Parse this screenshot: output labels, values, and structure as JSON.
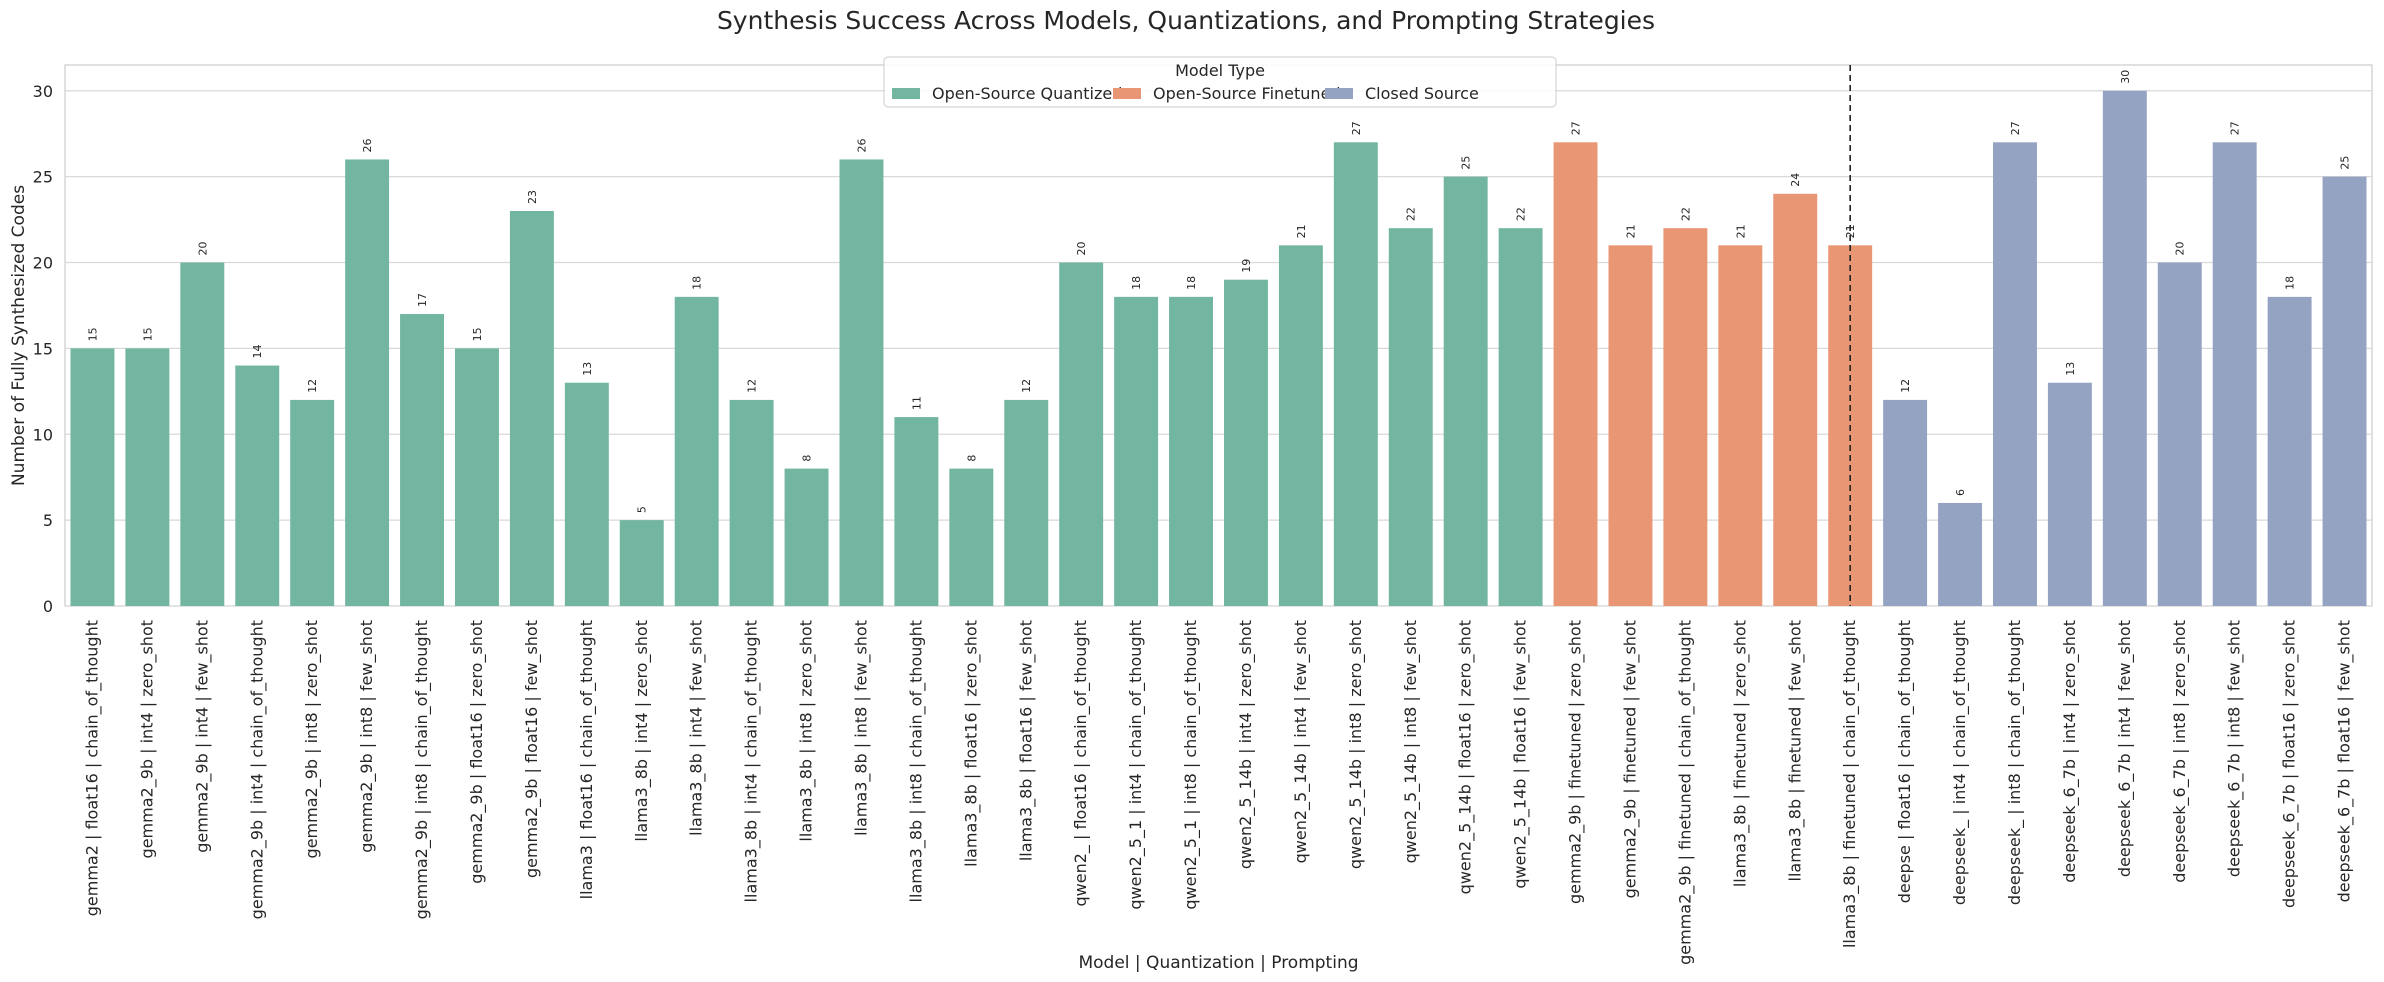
{
  "chart_data": {
    "type": "bar",
    "title": "Synthesis Success Across Models, Quantizations, and Prompting Strategies",
    "xlabel": "Model | Quantization | Prompting",
    "ylabel": "Number of Fully Synthesized Codes",
    "ylim": [
      0,
      31.5
    ],
    "yticks": [
      0,
      5,
      10,
      15,
      20,
      25,
      30
    ],
    "grid": true,
    "legend": {
      "title": "Model Type",
      "placement": "top-center",
      "entries": [
        {
          "name": "Open-Source Quantized",
          "color": "#72b6a1"
        },
        {
          "name": "Open-Source Finetuned",
          "color": "#e99675"
        },
        {
          "name": "Closed Source",
          "color": "#95a3c3"
        }
      ]
    },
    "divider_after_index": 32,
    "bars": [
      {
        "label": "gemma2 | float16 | chain_of_thought",
        "value": 15,
        "group": 0
      },
      {
        "label": "gemma2_9b | int4 | zero_shot",
        "value": 15,
        "group": 0
      },
      {
        "label": "gemma2_9b | int4 | few_shot",
        "value": 20,
        "group": 0
      },
      {
        "label": "gemma2_9b | int4 | chain_of_thought",
        "value": 14,
        "group": 0
      },
      {
        "label": "gemma2_9b | int8 | zero_shot",
        "value": 12,
        "group": 0
      },
      {
        "label": "gemma2_9b | int8 | few_shot",
        "value": 26,
        "group": 0
      },
      {
        "label": "gemma2_9b | int8 | chain_of_thought",
        "value": 17,
        "group": 0
      },
      {
        "label": "gemma2_9b | float16 | zero_shot",
        "value": 15,
        "group": 0
      },
      {
        "label": "gemma2_9b | float16 | few_shot",
        "value": 23,
        "group": 0
      },
      {
        "label": "llama3 | float16 | chain_of_thought",
        "value": 13,
        "group": 0
      },
      {
        "label": "llama3_8b | int4 | zero_shot",
        "value": 5,
        "group": 0
      },
      {
        "label": "llama3_8b | int4 | few_shot",
        "value": 18,
        "group": 0
      },
      {
        "label": "llama3_8b | int4 | chain_of_thought",
        "value": 12,
        "group": 0
      },
      {
        "label": "llama3_8b | int8 | zero_shot",
        "value": 8,
        "group": 0
      },
      {
        "label": "llama3_8b | int8 | few_shot",
        "value": 26,
        "group": 0
      },
      {
        "label": "llama3_8b | int8 | chain_of_thought",
        "value": 11,
        "group": 0
      },
      {
        "label": "llama3_8b | float16 | zero_shot",
        "value": 8,
        "group": 0
      },
      {
        "label": "llama3_8b | float16 | few_shot",
        "value": 12,
        "group": 0
      },
      {
        "label": "qwen2_ | float16 | chain_of_thought",
        "value": 20,
        "group": 0
      },
      {
        "label": "qwen2_5_1 | int4 | chain_of_thought",
        "value": 18,
        "group": 0
      },
      {
        "label": "qwen2_5_1 | int8 | chain_of_thought",
        "value": 18,
        "group": 0
      },
      {
        "label": "qwen2_5_14b | int4 | zero_shot",
        "value": 19,
        "group": 0
      },
      {
        "label": "qwen2_5_14b | int4 | few_shot",
        "value": 21,
        "group": 0
      },
      {
        "label": "qwen2_5_14b | int8 | zero_shot",
        "value": 27,
        "group": 0
      },
      {
        "label": "qwen2_5_14b | int8 | few_shot",
        "value": 22,
        "group": 0
      },
      {
        "label": "qwen2_5_14b | float16 | zero_shot",
        "value": 25,
        "group": 0
      },
      {
        "label": "qwen2_5_14b | float16 | few_shot",
        "value": 22,
        "group": 0
      },
      {
        "label": "gemma2_9b | finetuned | zero_shot",
        "value": 27,
        "group": 1
      },
      {
        "label": "gemma2_9b | finetuned | few_shot",
        "value": 21,
        "group": 1
      },
      {
        "label": "gemma2_9b | finetuned | chain_of_thought",
        "value": 22,
        "group": 1
      },
      {
        "label": "llama3_8b | finetuned | zero_shot",
        "value": 21,
        "group": 1
      },
      {
        "label": "llama3_8b | finetuned | few_shot",
        "value": 24,
        "group": 1
      },
      {
        "label": "llama3_8b | finetuned | chain_of_thought",
        "value": 21,
        "group": 1
      },
      {
        "label": "deepse | float16 | chain_of_thought",
        "value": 12,
        "group": 2
      },
      {
        "label": "deepseek_ | int4 | chain_of_thought",
        "value": 6,
        "group": 2
      },
      {
        "label": "deepseek_ | int8 | chain_of_thought",
        "value": 27,
        "group": 2
      },
      {
        "label": "deepseek_6_7b | int4 | zero_shot",
        "value": 13,
        "group": 2
      },
      {
        "label": "deepseek_6_7b | int4 | few_shot",
        "value": 30,
        "group": 2
      },
      {
        "label": "deepseek_6_7b | int8 | zero_shot",
        "value": 20,
        "group": 2
      },
      {
        "label": "deepseek_6_7b | int8 | few_shot",
        "value": 27,
        "group": 2
      },
      {
        "label": "deepseek_6_7b | float16 | zero_shot",
        "value": 18,
        "group": 2
      },
      {
        "label": "deepseek_6_7b | float16 | few_shot",
        "value": 25,
        "group": 2
      }
    ]
  }
}
